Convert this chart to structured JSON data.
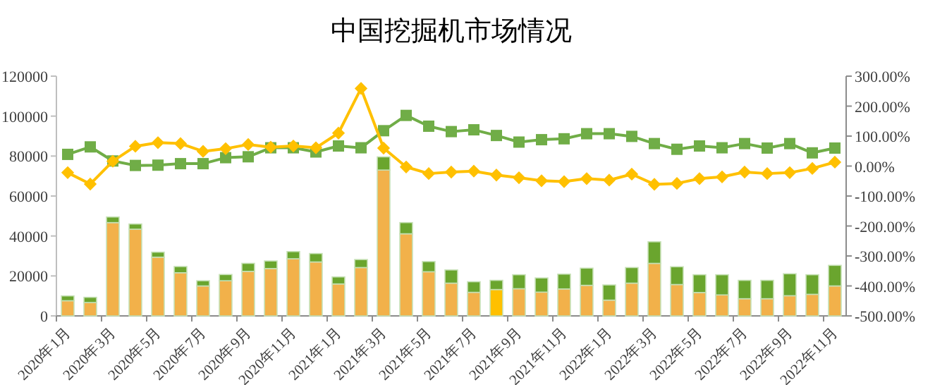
{
  "chart_data": {
    "type": "bar",
    "title": "中国挖掘机市场情况",
    "stacked": true,
    "categories": [
      "2020年1月",
      null,
      "2020年3月",
      null,
      "2020年5月",
      null,
      "2020年7月",
      null,
      "2020年9月",
      null,
      "2020年11月",
      null,
      "2021年1月",
      null,
      "2021年3月",
      null,
      "2021年5月",
      null,
      "2021年7月",
      null,
      "2021年9月",
      null,
      "2021年11月",
      null,
      "2022年1月",
      null,
      "2022年3月",
      null,
      "2022年5月",
      null,
      "2022年7月",
      null,
      "2022年9月",
      null,
      "2022年11月"
    ],
    "series": [
      {
        "colors": [
          "#f2b14a",
          "#f2b14a",
          "#f2b14a",
          "#f2b14a",
          "#f2b14a",
          "#f2b14a",
          "#f2b14a",
          "#f2b14a",
          "#f2b14a",
          "#f2b14a",
          "#f2b14a",
          "#f2b14a",
          "#f2b14a",
          "#f2b14a",
          "#f2b14a",
          "#f2b14a",
          "#f2b14a",
          "#f2b14a",
          "#f2b14a",
          "#ffc000",
          "#f2b14a",
          "#f2b14a",
          "#f2b14a",
          "#f2b14a",
          "#f2b14a",
          "#f2b14a",
          "#f2b14a",
          "#f2b14a",
          "#f2b14a",
          "#f2b14a",
          "#f2b14a",
          "#f2b14a",
          "#f2b14a",
          "#f2b14a",
          "#f2b14a"
        ],
        "values": [
          7600,
          6700,
          46700,
          43400,
          29400,
          21600,
          15000,
          17600,
          22300,
          23700,
          28600,
          27000,
          16000,
          24200,
          73000,
          41100,
          22100,
          16400,
          11800,
          13200,
          13600,
          11900,
          13500,
          15300,
          7900,
          16400,
          26300,
          15700,
          11700,
          10500,
          8600,
          8600,
          10100,
          10800,
          15000
        ]
      },
      {
        "color": "#6aa52e",
        "values": [
          2400,
          2600,
          2800,
          2600,
          2500,
          3100,
          2600,
          3100,
          4000,
          3800,
          3600,
          4200,
          3500,
          4000,
          6600,
          5600,
          5100,
          6600,
          5300,
          4600,
          7000,
          7100,
          7400,
          8600,
          7600,
          7800,
          10800,
          8900,
          8900,
          10100,
          9200,
          9200,
          11000,
          9800,
          10300
        ]
      },
      {
        "type": "line",
        "axis": "y2",
        "color": "#70ad47",
        "marker": "square",
        "values": [
          39,
          64,
          17,
          2,
          3,
          8,
          8,
          28,
          31,
          61,
          61,
          47,
          67,
          61,
          118,
          169,
          133,
          115,
          121,
          102,
          80,
          88,
          91,
          108,
          108,
          99,
          75,
          56,
          67,
          61,
          75,
          60,
          75,
          44,
          60
        ]
      },
      {
        "type": "line",
        "axis": "y2",
        "color": "#ffc000",
        "marker": "diamond",
        "values": [
          -22,
          -60,
          16,
          66,
          78,
          75,
          49,
          58,
          72,
          63,
          67,
          61,
          110,
          259,
          60,
          -3,
          -25,
          -20,
          -17,
          -30,
          -39,
          -49,
          -52,
          -42,
          -47,
          -27,
          -61,
          -58,
          -42,
          -36,
          -20,
          -25,
          -22,
          -8,
          13
        ]
      }
    ],
    "ylim": [
      0,
      120000
    ],
    "yticks": [
      0,
      20000,
      40000,
      60000,
      80000,
      100000,
      120000
    ],
    "y2lim": [
      -500,
      300
    ],
    "y2ticks": [
      {
        "value": -500,
        "label": "-500.00%"
      },
      {
        "value": -400,
        "label": "-400.00%"
      },
      {
        "value": -300,
        "label": "-300.00%"
      },
      {
        "value": -200,
        "label": "-200.00%"
      },
      {
        "value": -100,
        "label": "-100.00%"
      },
      {
        "value": 0,
        "label": "0.00%"
      },
      {
        "value": 100,
        "label": "100.00%"
      },
      {
        "value": 200,
        "label": "200.00%"
      },
      {
        "value": 300,
        "label": "300.00%"
      }
    ]
  }
}
